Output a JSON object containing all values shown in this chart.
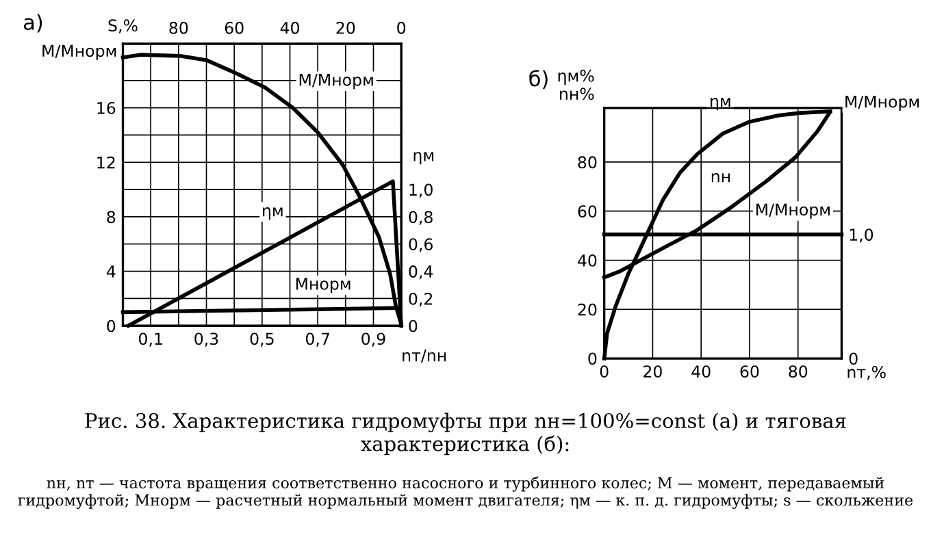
{
  "chart_data": [
    {
      "type": "line",
      "xlabel": "nт/nн",
      "ylabel": "M/Mнорм",
      "y2label": "ηм",
      "x2label": "S,%",
      "annotations": [
        "а)",
        "Рис. 38. Характеристика гидромуфты при nн=100%=const (а) и тяговая характеристика (б):",
        "nн, nт — частота вращения соответственно насосного и турбинного колес; M — момент, передаваемый гидромуфтой; Mнорм — расчетный нормальный момент двигателя; ηм — к. п. д. гидромуфты; s — скольжение"
      ],
      "xlim": [
        0,
        1.0
      ],
      "ylim": [
        0,
        20.7
      ],
      "y2lim": [
        0,
        2.07
      ],
      "x2lim": [
        100,
        0
      ],
      "xticks": [
        {
          "value": 0.1,
          "label": "0,1"
        },
        {
          "value": 0.2,
          "label": null
        },
        {
          "value": 0.3,
          "label": "0,3"
        },
        {
          "value": 0.4,
          "label": null
        },
        {
          "value": 0.5,
          "label": "0,5"
        },
        {
          "value": 0.6,
          "label": null
        },
        {
          "value": 0.7,
          "label": "0,7"
        },
        {
          "value": 0.8,
          "label": null
        },
        {
          "value": 0.9,
          "label": "0,9"
        }
      ],
      "yticks": [
        0,
        {
          "value": 2,
          "label": null
        },
        4,
        {
          "value": 6,
          "label": null
        },
        8,
        {
          "value": 10,
          "label": null
        },
        12,
        {
          "value": 14,
          "label": null
        },
        16,
        {
          "value": 18,
          "label": null
        }
      ],
      "y2ticks": [
        0,
        {
          "value": 0.2,
          "label": "0,2"
        },
        {
          "value": 0.4,
          "label": "0,4"
        },
        {
          "value": 0.6,
          "label": "0,6"
        },
        {
          "value": 0.8,
          "label": "0,8"
        },
        {
          "value": 1.0,
          "label": "1,0"
        }
      ],
      "x2ticks": [
        80,
        60,
        40,
        20,
        0
      ],
      "grid": true,
      "series": [
        {
          "name": "M/Mнорм",
          "color": "#000000",
          "x": [
            0,
            0.066,
            0.21,
            0.3,
            0.41,
            0.51,
            0.61,
            0.7,
            0.79,
            0.85,
            0.92,
            0.96,
            0.98,
            1.0
          ],
          "values": [
            19.7,
            19.9,
            19.8,
            19.5,
            18.5,
            17.5,
            16.0,
            14.2,
            11.8,
            9.5,
            6.5,
            3.8,
            1.5,
            0.1
          ]
        },
        {
          "name": "ηм",
          "color": "#000000",
          "axis": "y2",
          "x": [
            0.02,
            0.97,
            1.0
          ],
          "values": [
            0,
            1.06,
            0
          ]
        },
        {
          "name": "Mнорм",
          "color": "#000000",
          "x": [
            0,
            0.98
          ],
          "values": [
            1.0,
            1.3
          ]
        }
      ]
    },
    {
      "type": "line",
      "xlabel": "nт,%",
      "ylabel": "ηм%\nnн%",
      "y2label": "M/Mнорм",
      "annotations": [
        "б)"
      ],
      "xlim": [
        0,
        98
      ],
      "ylim": [
        0,
        102
      ],
      "y2lim": [
        0,
        2.02
      ],
      "xticks": [
        0,
        20,
        40,
        60,
        80
      ],
      "yticks": [
        0,
        20,
        40,
        60,
        80
      ],
      "y2ticks": [
        0,
        {
          "value": 1.0,
          "label": "1,0"
        }
      ],
      "grid": true,
      "series": [
        {
          "name": "ηм",
          "color": "#000000",
          "x": [
            0,
            1.2,
            4.8,
            10,
            13.6,
            18,
            24.2,
            31.3,
            38.4,
            49,
            59.6,
            72,
            80.9,
            93.3
          ],
          "values": [
            0,
            10.3,
            21.5,
            34.6,
            42,
            51.4,
            64.5,
            75.7,
            83.2,
            91.6,
            96.3,
            99,
            100,
            100.6
          ]
        },
        {
          "name": "nн",
          "color": "#000000",
          "x": [
            0,
            6.5,
            13.6,
            24.2,
            38.4,
            52.6,
            66.7,
            79,
            88,
            93
          ],
          "values": [
            33,
            35.5,
            39.3,
            44.9,
            52.3,
            61.7,
            72,
            82,
            92.5,
            100
          ]
        },
        {
          "name": "M/Mнорм",
          "color": "#000000",
          "axis": "y2",
          "x": [
            0,
            98
          ],
          "values": [
            1.0,
            1.0
          ]
        }
      ]
    }
  ]
}
